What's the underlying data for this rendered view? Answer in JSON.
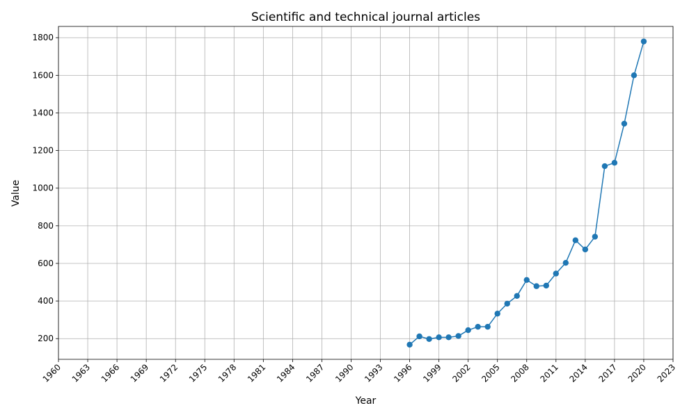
{
  "chart_data": {
    "type": "line",
    "title": "Scientific and technical journal articles",
    "xlabel": "Year",
    "ylabel": "Value",
    "xlim": [
      1960,
      2023
    ],
    "ylim": [
      90,
      1860
    ],
    "x_ticks": [
      1960,
      1963,
      1966,
      1969,
      1972,
      1975,
      1978,
      1981,
      1984,
      1987,
      1990,
      1993,
      1996,
      1999,
      2002,
      2005,
      2008,
      2011,
      2014,
      2017,
      2020,
      2023
    ],
    "y_ticks": [
      200,
      400,
      600,
      800,
      1000,
      1200,
      1400,
      1600,
      1800
    ],
    "grid": true,
    "series": [
      {
        "color": "#1f77b4",
        "marker": "circle",
        "x": [
          1996,
          1997,
          1998,
          1999,
          2000,
          2001,
          2002,
          2003,
          2004,
          2005,
          2006,
          2007,
          2008,
          2009,
          2010,
          2011,
          2012,
          2013,
          2014,
          2015,
          2016,
          2017,
          2018,
          2019,
          2020
        ],
        "values": [
          168,
          212,
          198,
          207,
          207,
          214,
          245,
          263,
          263,
          333,
          386,
          427,
          512,
          479,
          482,
          546,
          603,
          723,
          674,
          742,
          1117,
          1135,
          1343,
          1600,
          1780
        ]
      }
    ]
  }
}
